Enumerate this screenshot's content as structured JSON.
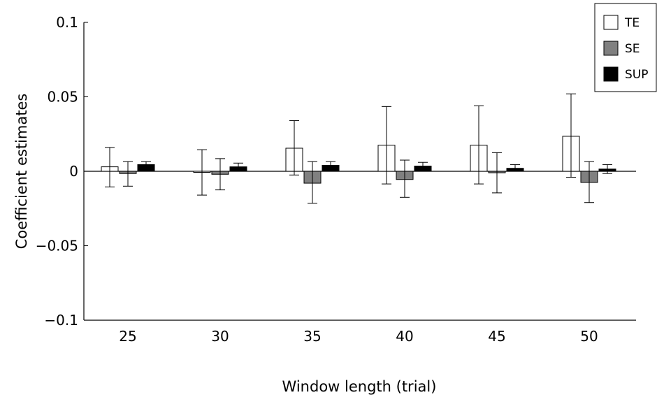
{
  "chart_data": {
    "type": "bar",
    "title": "",
    "xlabel": "Window length (trial)",
    "ylabel": "Coefficient estimates",
    "ylim": [
      -0.1,
      0.1
    ],
    "yticks": [
      0.1,
      0.05,
      0,
      -0.05,
      -0.1
    ],
    "ytick_labels": [
      "0.1",
      "0.05",
      "0",
      "−0.05",
      "−0.1"
    ],
    "categories": [
      "25",
      "30",
      "35",
      "40",
      "45",
      "50"
    ],
    "legend_position": "top-right",
    "grid": false,
    "series": [
      {
        "name": "TE",
        "color": "#ffffff",
        "values": [
          0.003,
          -0.0005,
          0.0155,
          0.0175,
          0.0175,
          0.0235
        ],
        "err_low": [
          -0.0105,
          -0.016,
          -0.0025,
          -0.0085,
          -0.0085,
          -0.004
        ],
        "err_high": [
          0.016,
          0.0145,
          0.034,
          0.0435,
          0.044,
          0.052
        ]
      },
      {
        "name": "SE",
        "color": "#808080",
        "values": [
          -0.0015,
          -0.002,
          -0.008,
          -0.0055,
          -0.001,
          -0.0075
        ],
        "err_low": [
          -0.01,
          -0.0125,
          -0.0215,
          -0.0175,
          -0.0145,
          -0.021
        ],
        "err_high": [
          0.0065,
          0.0085,
          0.0065,
          0.0075,
          0.0125,
          0.0065
        ]
      },
      {
        "name": "SUP",
        "color": "#000000",
        "values": [
          0.0045,
          0.003,
          0.004,
          0.0035,
          0.002,
          0.0015
        ],
        "err_low": [
          0.0025,
          0.0015,
          0.0015,
          0.002,
          0.0005,
          -0.0015
        ],
        "err_high": [
          0.0065,
          0.0055,
          0.0065,
          0.006,
          0.0045,
          0.0045
        ]
      }
    ]
  }
}
